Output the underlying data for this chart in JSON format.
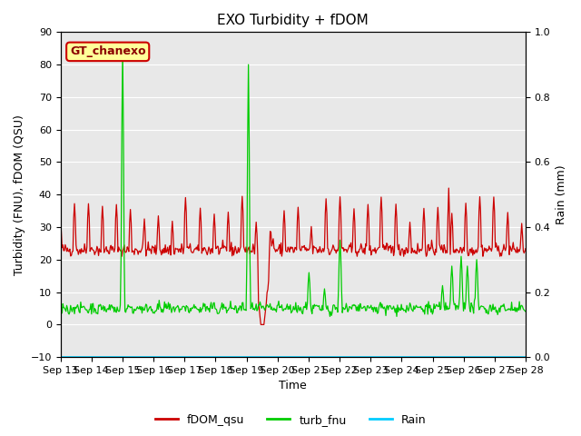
{
  "title": "EXO Turbidity + fDOM",
  "xlabel": "Time",
  "ylabel_left": "Turbidity (FNU), fDOM (QSU)",
  "ylabel_right": "Rain (mm)",
  "ylim_left": [
    -10,
    90
  ],
  "ylim_right": [
    0.0,
    1.0
  ],
  "yticks_left": [
    -10,
    0,
    10,
    20,
    30,
    40,
    50,
    60,
    70,
    80,
    90
  ],
  "yticks_right": [
    0.0,
    0.2,
    0.4,
    0.6,
    0.8,
    1.0
  ],
  "xtick_labels": [
    "Sep 13",
    "Sep 14",
    "Sep 15",
    "Sep 16",
    "Sep 17",
    "Sep 18",
    "Sep 19",
    "Sep 20",
    "Sep 21",
    "Sep 22",
    "Sep 23",
    "Sep 24",
    "Sep 25",
    "Sep 26",
    "Sep 27",
    "Sep 28"
  ],
  "annotation_text": "GT_chanexo",
  "annotation_bg": "#ffff99",
  "annotation_border": "#cc0000",
  "fdom_color": "#cc0000",
  "turb_color": "#00cc00",
  "rain_color": "#00ccff",
  "bg_color": "#e8e8e8",
  "title_fontsize": 11,
  "label_fontsize": 9,
  "tick_fontsize": 8,
  "legend_fontsize": 9,
  "n_days": 15,
  "n_pts": 600
}
